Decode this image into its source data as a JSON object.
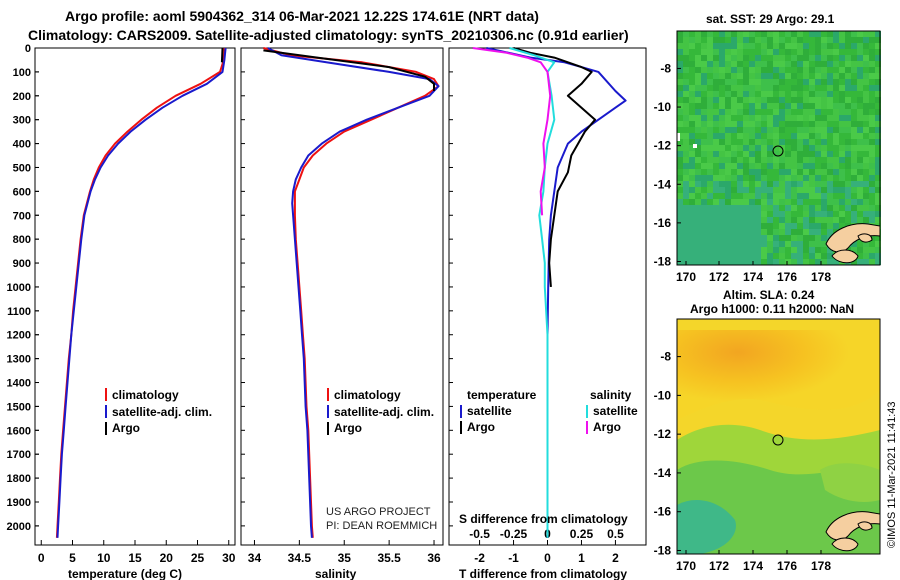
{
  "header": {
    "title_line1": "Argo profile: aoml 5904362_314 06-Mar-2021 12.22S 174.61E (NRT data)",
    "title_line2": "Climatology: CARS2009. Satellite-adjusted climatology: synTS_20210306.nc (0.91d earlier)"
  },
  "colors": {
    "climatology": "#ee1111",
    "satellite": "#1a1acc",
    "argo": "#000000",
    "sal_satellite": "#22dddd",
    "sal_argo": "#ee11ee"
  },
  "chart_data": [
    {
      "id": "temperature",
      "type": "line",
      "xlabel": "temperature (deg C)",
      "ylabel": "",
      "xlim": [
        -1,
        31
      ],
      "ylim": [
        2080,
        0
      ],
      "xticks": [
        0,
        5,
        10,
        15,
        20,
        25,
        30
      ],
      "yticks": [
        0,
        100,
        200,
        300,
        400,
        500,
        600,
        700,
        800,
        900,
        1000,
        1100,
        1200,
        1300,
        1400,
        1500,
        1600,
        1700,
        1800,
        1900,
        2000
      ],
      "legend": {
        "position": "bottom-right",
        "items": [
          "climatology",
          "satellite-adj. clim.",
          "Argo"
        ]
      },
      "series": [
        {
          "name": "climatology",
          "color": "#ee1111",
          "points": [
            [
              29.3,
              0
            ],
            [
              29.2,
              50
            ],
            [
              28.6,
              100
            ],
            [
              25.5,
              150
            ],
            [
              21.5,
              200
            ],
            [
              18.5,
              250
            ],
            [
              16.0,
              300
            ],
            [
              13.8,
              350
            ],
            [
              11.8,
              400
            ],
            [
              10.3,
              450
            ],
            [
              9.2,
              500
            ],
            [
              8.4,
              550
            ],
            [
              7.8,
              600
            ],
            [
              7.3,
              650
            ],
            [
              6.8,
              700
            ],
            [
              6.3,
              800
            ],
            [
              5.9,
              900
            ],
            [
              5.5,
              1000
            ],
            [
              5.1,
              1100
            ],
            [
              4.8,
              1200
            ],
            [
              4.4,
              1300
            ],
            [
              4.1,
              1400
            ],
            [
              3.8,
              1500
            ],
            [
              3.5,
              1600
            ],
            [
              3.2,
              1700
            ],
            [
              3.0,
              1800
            ],
            [
              2.8,
              1900
            ],
            [
              2.6,
              2000
            ],
            [
              2.5,
              2050
            ]
          ]
        },
        {
          "name": "satellite-adj. clim.",
          "color": "#1a1acc",
          "points": [
            [
              29.5,
              0
            ],
            [
              29.3,
              50
            ],
            [
              29.0,
              100
            ],
            [
              26.5,
              150
            ],
            [
              22.6,
              200
            ],
            [
              19.4,
              250
            ],
            [
              16.7,
              300
            ],
            [
              14.3,
              350
            ],
            [
              12.3,
              400
            ],
            [
              10.7,
              450
            ],
            [
              9.5,
              500
            ],
            [
              8.6,
              550
            ],
            [
              7.9,
              600
            ],
            [
              7.4,
              650
            ],
            [
              6.9,
              700
            ],
            [
              6.4,
              800
            ],
            [
              6.0,
              900
            ],
            [
              5.6,
              1000
            ],
            [
              5.2,
              1100
            ],
            [
              4.8,
              1200
            ],
            [
              4.5,
              1300
            ],
            [
              4.2,
              1400
            ],
            [
              3.9,
              1500
            ],
            [
              3.6,
              1600
            ],
            [
              3.3,
              1700
            ],
            [
              3.1,
              1800
            ],
            [
              2.9,
              1900
            ],
            [
              2.7,
              2000
            ],
            [
              2.6,
              2050
            ]
          ]
        },
        {
          "name": "Argo",
          "color": "#000000",
          "points": [
            [
              29.0,
              0
            ],
            [
              28.9,
              60
            ]
          ]
        }
      ]
    },
    {
      "id": "salinity",
      "type": "line",
      "xlabel": "salinity",
      "ylabel": "",
      "xlim": [
        33.85,
        36.1
      ],
      "ylim": [
        2080,
        0
      ],
      "xticks": [
        34,
        34.5,
        35,
        35.5,
        36
      ],
      "legend": {
        "position": "bottom-right",
        "items": [
          "climatology",
          "satellite-adj. clim.",
          "Argo"
        ]
      },
      "annotation": [
        "US ARGO PROJECT",
        "PI: DEAN ROEMMICH"
      ],
      "series": [
        {
          "name": "climatology",
          "color": "#ee1111",
          "points": [
            [
              34.1,
              0
            ],
            [
              34.4,
              30
            ],
            [
              35.2,
              60
            ],
            [
              35.8,
              100
            ],
            [
              36.0,
              130
            ],
            [
              36.05,
              160
            ],
            [
              35.9,
              200
            ],
            [
              35.6,
              250
            ],
            [
              35.3,
              300
            ],
            [
              35.0,
              350
            ],
            [
              34.8,
              400
            ],
            [
              34.65,
              450
            ],
            [
              34.55,
              500
            ],
            [
              34.5,
              550
            ],
            [
              34.45,
              600
            ],
            [
              34.45,
              650
            ],
            [
              34.45,
              700
            ],
            [
              34.46,
              800
            ],
            [
              34.48,
              900
            ],
            [
              34.5,
              1000
            ],
            [
              34.52,
              1100
            ],
            [
              34.54,
              1200
            ],
            [
              34.56,
              1300
            ],
            [
              34.57,
              1400
            ],
            [
              34.58,
              1500
            ],
            [
              34.6,
              1600
            ],
            [
              34.61,
              1700
            ],
            [
              34.62,
              1800
            ],
            [
              34.63,
              1900
            ],
            [
              34.64,
              2000
            ],
            [
              34.65,
              2050
            ]
          ]
        },
        {
          "name": "satellite-adj. clim.",
          "color": "#1a1acc",
          "points": [
            [
              34.15,
              0
            ],
            [
              34.3,
              30
            ],
            [
              34.8,
              60
            ],
            [
              35.5,
              100
            ],
            [
              35.95,
              130
            ],
            [
              36.05,
              160
            ],
            [
              35.95,
              200
            ],
            [
              35.6,
              250
            ],
            [
              35.25,
              300
            ],
            [
              34.95,
              350
            ],
            [
              34.75,
              400
            ],
            [
              34.6,
              450
            ],
            [
              34.52,
              500
            ],
            [
              34.46,
              550
            ],
            [
              34.43,
              600
            ],
            [
              34.42,
              650
            ],
            [
              34.43,
              700
            ],
            [
              34.45,
              800
            ],
            [
              34.47,
              900
            ],
            [
              34.49,
              1000
            ],
            [
              34.51,
              1100
            ],
            [
              34.53,
              1200
            ],
            [
              34.55,
              1300
            ],
            [
              34.56,
              1400
            ],
            [
              34.57,
              1500
            ],
            [
              34.59,
              1600
            ],
            [
              34.6,
              1700
            ],
            [
              34.61,
              1800
            ],
            [
              34.62,
              1900
            ],
            [
              34.63,
              2000
            ],
            [
              34.64,
              2050
            ]
          ]
        },
        {
          "name": "Argo",
          "color": "#000000",
          "points": [
            [
              34.1,
              10
            ],
            [
              34.7,
              40
            ],
            [
              35.5,
              80
            ],
            [
              35.9,
              120
            ],
            [
              36.0,
              150
            ],
            [
              36.0,
              180
            ]
          ]
        }
      ]
    },
    {
      "id": "difference",
      "type": "line",
      "xlabel": "T difference from climatology",
      "xlabel_top": "S difference from climatology",
      "xlim": [
        -2.9,
        2.9
      ],
      "ylim": [
        2080,
        0
      ],
      "xticks": [
        -2,
        -1,
        0,
        1,
        2
      ],
      "xticks_top_labels": [
        "-0.5",
        "-0.25",
        "0",
        "0.25",
        "0.5"
      ],
      "legend": {
        "position": "bottom",
        "temperature_header": "temperature",
        "salinity_header": "salinity",
        "items": [
          "satellite",
          "Argo",
          "satellite",
          "Argo"
        ]
      },
      "series": [
        {
          "name": "T satellite",
          "color": "#1a1acc",
          "points": [
            [
              -1.8,
              0
            ],
            [
              -0.5,
              40
            ],
            [
              0.5,
              60
            ],
            [
              1.0,
              80
            ],
            [
              1.5,
              100
            ],
            [
              2.0,
              180
            ],
            [
              2.3,
              220
            ],
            [
              2.0,
              250
            ],
            [
              1.5,
              300
            ],
            [
              1.0,
              350
            ],
            [
              0.6,
              400
            ],
            [
              0.3,
              500
            ],
            [
              0.2,
              600
            ],
            [
              0.1,
              700
            ],
            [
              0.05,
              800
            ],
            [
              0.02,
              1000
            ],
            [
              0.0,
              1200
            ],
            [
              0.0,
              1500
            ],
            [
              0.0,
              2050
            ]
          ]
        },
        {
          "name": "T Argo",
          "color": "#000000",
          "points": [
            [
              -1.0,
              0
            ],
            [
              -0.5,
              20
            ],
            [
              0.2,
              40
            ],
            [
              0.6,
              60
            ],
            [
              1.0,
              80
            ],
            [
              1.3,
              100
            ],
            [
              1.0,
              150
            ],
            [
              0.6,
              200
            ],
            [
              1.0,
              250
            ],
            [
              1.4,
              300
            ],
            [
              1.1,
              350
            ],
            [
              0.9,
              400
            ],
            [
              0.7,
              450
            ],
            [
              0.6,
              520
            ],
            [
              0.3,
              600
            ],
            [
              0.2,
              700
            ],
            [
              0.1,
              800
            ],
            [
              0.05,
              900
            ],
            [
              0.1,
              1000
            ]
          ]
        },
        {
          "name": "S satellite",
          "color": "#22dddd",
          "points": [
            [
              -0.28,
              0
            ],
            [
              -0.1,
              30
            ],
            [
              0.05,
              60
            ],
            [
              0.0,
              100
            ],
            [
              0.03,
              200
            ],
            [
              0.05,
              300
            ],
            [
              0.0,
              400
            ],
            [
              -0.02,
              500
            ],
            [
              -0.03,
              600
            ],
            [
              -0.06,
              700
            ],
            [
              -0.04,
              800
            ],
            [
              -0.02,
              900
            ],
            [
              -0.02,
              1000
            ],
            [
              0.0,
              1200
            ],
            [
              0.0,
              1500
            ],
            [
              0.0,
              2050
            ]
          ]
        },
        {
          "name": "S Argo",
          "color": "#ee11ee",
          "points": [
            [
              -0.55,
              0
            ],
            [
              -0.3,
              20
            ],
            [
              -0.15,
              40
            ],
            [
              -0.05,
              60
            ],
            [
              0.0,
              100
            ],
            [
              0.02,
              200
            ],
            [
              0.0,
              300
            ],
            [
              -0.03,
              400
            ],
            [
              -0.02,
              500
            ],
            [
              -0.05,
              600
            ],
            [
              -0.04,
              700
            ]
          ]
        }
      ]
    }
  ],
  "maps": {
    "top": {
      "title": "sat. SST: 29 Argo: 29.1",
      "xticks": [
        "170",
        "172",
        "174",
        "176",
        "178"
      ],
      "yticks": [
        "-8",
        "-10",
        "-12",
        "-14",
        "-16",
        "-18"
      ]
    },
    "bottom": {
      "title_line1": "Altim. SLA: 0.24",
      "title_line2": "Argo h1000: 0.11 h2000: NaN",
      "xticks": [
        "170",
        "172",
        "174",
        "176",
        "178"
      ],
      "yticks": [
        "-8",
        "-10",
        "-12",
        "-14",
        "-16",
        "-18"
      ]
    }
  },
  "footer": {
    "credit": "©IMOS 11-Mar-2021 11:41:43"
  }
}
